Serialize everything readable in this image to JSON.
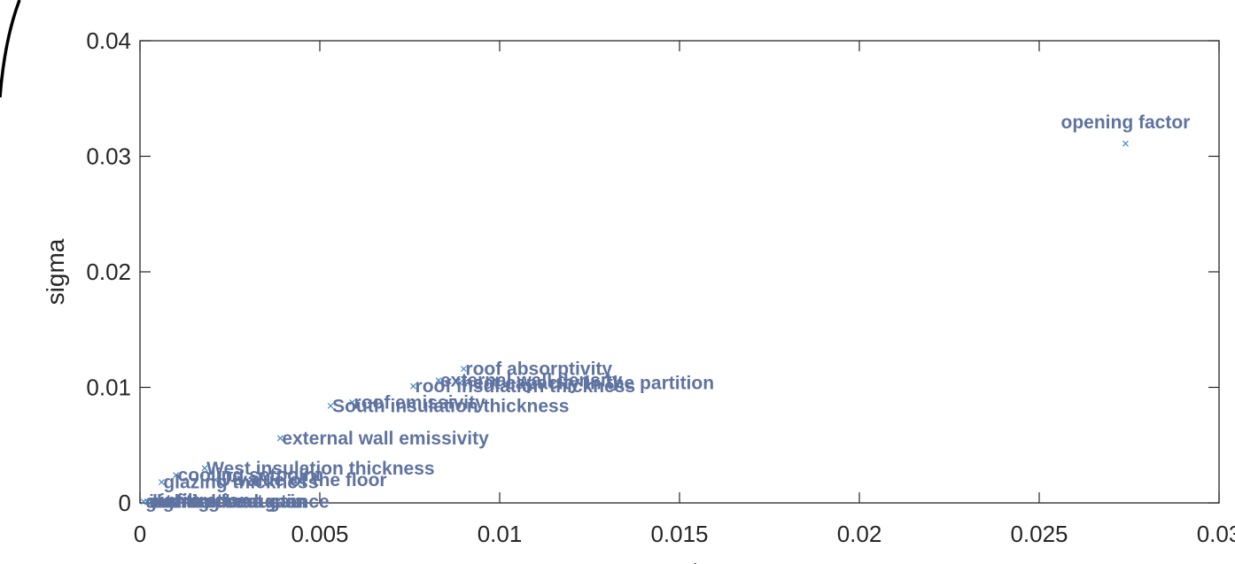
{
  "chart_data": {
    "type": "scatter",
    "title": "",
    "xlabel": "mu star",
    "ylabel": "sigma",
    "xlim": [
      0,
      0.03
    ],
    "ylim": [
      0,
      0.04
    ],
    "xticks": [
      0,
      0.005,
      0.01,
      0.015,
      0.02,
      0.025,
      0.03
    ],
    "xtick_labels": [
      "0",
      "0.005",
      "0.01",
      "0.015",
      "0.02",
      "0.025",
      "0.03"
    ],
    "yticks": [
      0,
      0.01,
      0.02,
      0.03,
      0.04
    ],
    "ytick_labels": [
      "0",
      "0.01",
      "0.02",
      "0.03",
      "0.04"
    ],
    "grid": false,
    "marker": "x",
    "marker_color": "#3f86c8",
    "label_color": "#5f73a0",
    "points": [
      {
        "label": "opening factor",
        "x": 0.0274,
        "y": 0.0311
      },
      {
        "label": "roof absorptivity",
        "x": 0.009,
        "y": 0.0116
      },
      {
        "label": "external wall density",
        "x": 0.0083,
        "y": 0.0106
      },
      {
        "label": "roof insulation thickness",
        "x": 0.0076,
        "y": 0.0101
      },
      {
        "label": "heat capacity in the partition",
        "x": 0.0089,
        "y": 0.0104
      },
      {
        "label": "roof emissivity",
        "x": 0.0059,
        "y": 0.0087
      },
      {
        "label": "South insulation thickness",
        "x": 0.0053,
        "y": 0.0084
      },
      {
        "label": "external wall emissivity",
        "x": 0.0039,
        "y": 0.0056
      },
      {
        "label": "West insulation thickness",
        "x": 0.0018,
        "y": 0.003
      },
      {
        "label": "U-value of the floor",
        "x": 0.0021,
        "y": 0.002
      },
      {
        "label": "cooling setpoint",
        "x": 0.001,
        "y": 0.0024
      },
      {
        "label": "glazing thickness",
        "x": 0.0006,
        "y": 0.0018
      },
      {
        "label": "infiltration",
        "x": 0.0005,
        "y": 0.0002
      },
      {
        "label": "lighting heat gain",
        "x": 0.0003,
        "y": 0.0001
      },
      {
        "label": "internal heat gain",
        "x": 0.0002,
        "y": 0.0001
      },
      {
        "label": "glazing conductance",
        "x": 0.0001,
        "y": 0.0001
      }
    ]
  }
}
